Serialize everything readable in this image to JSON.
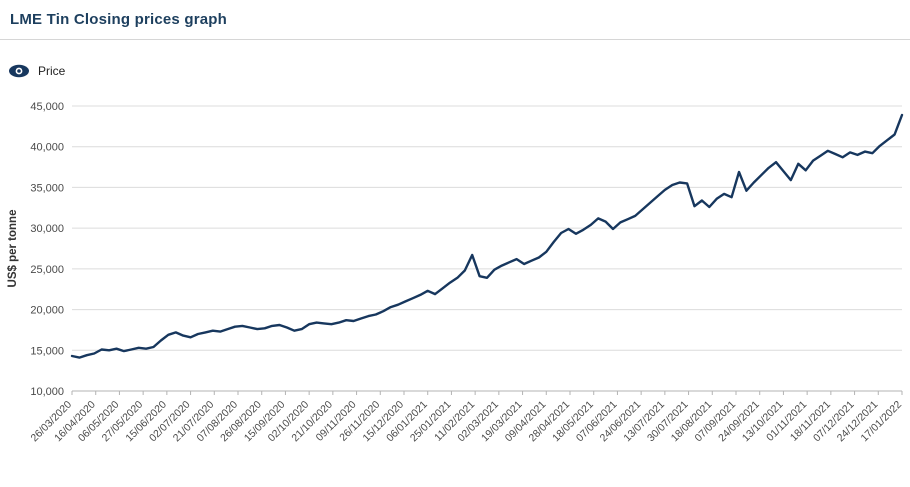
{
  "header": {
    "title": "LME Tin Closing prices graph"
  },
  "legend": {
    "label": "Price"
  },
  "colors": {
    "title": "#1d3f5e",
    "line": "#17375e",
    "grid": "#dcdcdc",
    "axis_line": "#b3b3b3",
    "tick_text": "#4a4a4a",
    "ylabel_text": "#333333"
  },
  "chart_data": {
    "type": "line",
    "title": "LME Tin Closing prices graph",
    "xlabel": "",
    "ylabel": "US$ per tonne",
    "ylim": [
      10000,
      45000
    ],
    "ytick_step": 5000,
    "grid": "horizontal",
    "legend_position": "top-left",
    "x_tick_labels": [
      "26/03/2020",
      "16/04/2020",
      "06/05/2020",
      "27/05/2020",
      "15/06/2020",
      "02/07/2020",
      "21/07/2020",
      "07/08/2020",
      "26/08/2020",
      "15/09/2020",
      "02/10/2020",
      "21/10/2020",
      "09/11/2020",
      "26/11/2020",
      "15/12/2020",
      "06/01/2021",
      "25/01/2021",
      "11/02/2021",
      "02/03/2021",
      "19/03/2021",
      "09/04/2021",
      "28/04/2021",
      "18/05/2021",
      "07/06/2021",
      "24/06/2021",
      "13/07/2021",
      "30/07/2021",
      "18/08/2021",
      "07/09/2021",
      "24/09/2021",
      "13/10/2021",
      "01/11/2021",
      "18/11/2021",
      "07/12/2021",
      "24/12/2021",
      "17/01/2022"
    ],
    "series": [
      {
        "name": "Price",
        "values": [
          14300,
          14100,
          14400,
          14600,
          15100,
          15000,
          15200,
          14900,
          15100,
          15300,
          15200,
          15400,
          16200,
          16900,
          17200,
          16800,
          16600,
          17000,
          17200,
          17400,
          17300,
          17600,
          17900,
          18000,
          17800,
          17600,
          17700,
          18000,
          18100,
          17800,
          17400,
          17600,
          18200,
          18400,
          18300,
          18200,
          18400,
          18700,
          18600,
          18900,
          19200,
          19400,
          19800,
          20300,
          20600,
          21000,
          21400,
          21800,
          22300,
          21900,
          22600,
          23300,
          23900,
          24800,
          26700,
          24100,
          23900,
          24900,
          25400,
          25800,
          26200,
          25600,
          26000,
          26400,
          27100,
          28300,
          29400,
          29900,
          29300,
          29800,
          30400,
          31200,
          30800,
          29900,
          30700,
          31100,
          31500,
          32300,
          33100,
          33900,
          34700,
          35300,
          35600,
          35500,
          32700,
          33400,
          32600,
          33600,
          34200,
          33800,
          36900,
          34600,
          35600,
          36500,
          37400,
          38100,
          37000,
          35900,
          37900,
          37100,
          38300,
          38900,
          39500,
          39100,
          38700,
          39300,
          39000,
          39400,
          39200,
          40100,
          40800,
          41500,
          43900
        ]
      }
    ]
  }
}
